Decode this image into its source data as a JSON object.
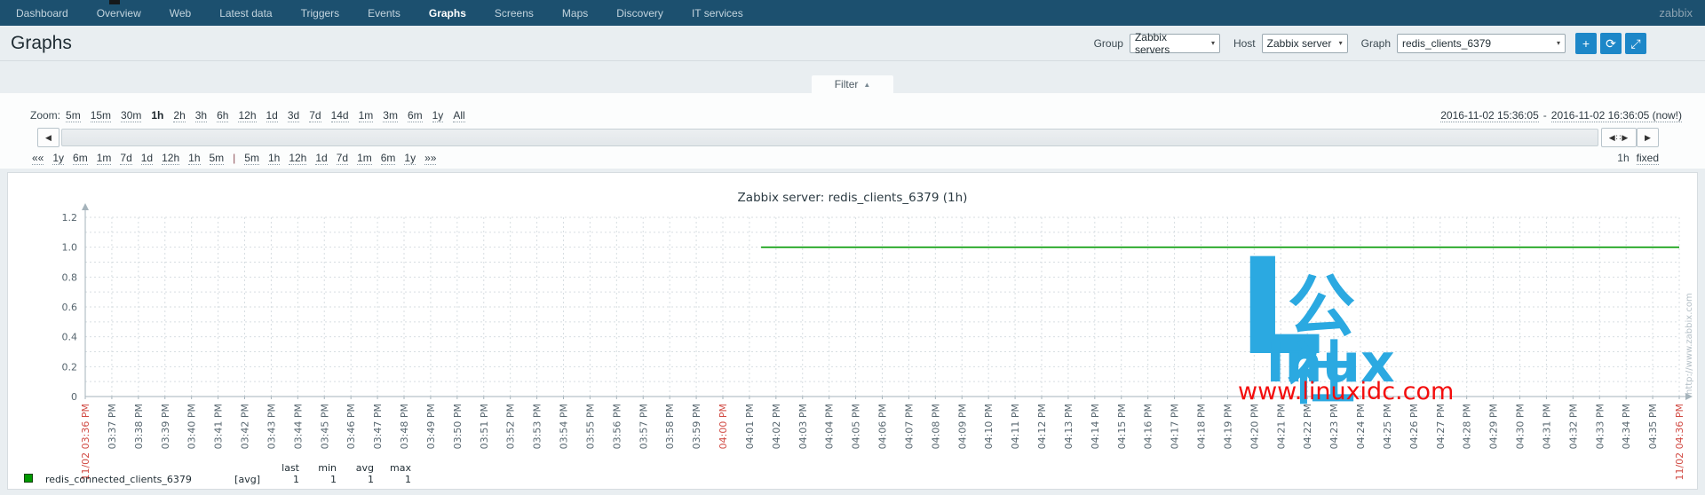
{
  "nav": {
    "brand": "zabbix",
    "items": [
      {
        "label": "Dashboard",
        "active": false
      },
      {
        "label": "Overview",
        "active": false
      },
      {
        "label": "Web",
        "active": false
      },
      {
        "label": "Latest data",
        "active": false
      },
      {
        "label": "Triggers",
        "active": false
      },
      {
        "label": "Events",
        "active": false
      },
      {
        "label": "Graphs",
        "active": true
      },
      {
        "label": "Screens",
        "active": false
      },
      {
        "label": "Maps",
        "active": false
      },
      {
        "label": "Discovery",
        "active": false
      },
      {
        "label": "IT services",
        "active": false
      }
    ]
  },
  "header": {
    "title": "Graphs",
    "group_label": "Group",
    "group_value": "Zabbix servers",
    "host_label": "Host",
    "host_value": "Zabbix server",
    "graph_label": "Graph",
    "graph_value": "redis_clients_6379",
    "select_caret": "▾",
    "buttons": [
      {
        "name": "add",
        "glyph": "+"
      },
      {
        "name": "refresh",
        "glyph": "⟳"
      },
      {
        "name": "fullscreen",
        "glyph": "⤢"
      }
    ]
  },
  "filter": {
    "label": "Filter",
    "caret": "▲"
  },
  "timebar": {
    "zoom_label": "Zoom:",
    "zoom_links": [
      "5m",
      "15m",
      "30m",
      "1h",
      "2h",
      "3h",
      "6h",
      "12h",
      "1d",
      "3d",
      "7d",
      "14d",
      "1m",
      "3m",
      "6m",
      "1y",
      "All"
    ],
    "zoom_active": "1h",
    "range_start": "2016-11-02 15:36:05",
    "range_sep": "-",
    "range_end": "2016-11-02 16:36:05 (now!)",
    "scroll": {
      "left_arrow": "◀",
      "handle": "◀∷▶",
      "right_arrow": "▶"
    },
    "nav_left": [
      "««",
      "1y",
      "6m",
      "1m",
      "7d",
      "1d",
      "12h",
      "1h",
      "5m"
    ],
    "nav_sep": "|",
    "nav_right": [
      "5m",
      "1h",
      "12h",
      "1d",
      "7d",
      "1m",
      "6m",
      "1y",
      "»»"
    ],
    "period": "1h",
    "fixed_label": "fixed"
  },
  "chart_data": {
    "type": "line",
    "title": "Zabbix server: redis_clients_6379 (1h)",
    "ylim": [
      0,
      1.2
    ],
    "y_major_step": 0.2,
    "y_minor_step": 0.1,
    "grid": true,
    "y_tick_labels": [
      "0",
      "0.2",
      "0.4",
      "0.6",
      "0.8",
      "1.0",
      "1.2"
    ],
    "x_tick_labels": [
      "11/02 03:36 PM",
      "03:37 PM",
      "03:38 PM",
      "03:39 PM",
      "03:40 PM",
      "03:41 PM",
      "03:42 PM",
      "03:43 PM",
      "03:44 PM",
      "03:45 PM",
      "03:46 PM",
      "03:47 PM",
      "03:48 PM",
      "03:49 PM",
      "03:50 PM",
      "03:51 PM",
      "03:52 PM",
      "03:53 PM",
      "03:54 PM",
      "03:55 PM",
      "03:56 PM",
      "03:57 PM",
      "03:58 PM",
      "03:59 PM",
      "04:00 PM",
      "04:01 PM",
      "04:02 PM",
      "04:03 PM",
      "04:04 PM",
      "04:05 PM",
      "04:06 PM",
      "04:07 PM",
      "04:08 PM",
      "04:09 PM",
      "04:10 PM",
      "04:11 PM",
      "04:12 PM",
      "04:13 PM",
      "04:14 PM",
      "04:15 PM",
      "04:16 PM",
      "04:17 PM",
      "04:18 PM",
      "04:19 PM",
      "04:20 PM",
      "04:21 PM",
      "04:22 PM",
      "04:23 PM",
      "04:24 PM",
      "04:25 PM",
      "04:26 PM",
      "04:27 PM",
      "04:28 PM",
      "04:29 PM",
      "04:30 PM",
      "04:31 PM",
      "04:32 PM",
      "04:33 PM",
      "04:34 PM",
      "04:35 PM",
      "11/02 04:36 PM"
    ],
    "x_red_indices": [
      0,
      24,
      60
    ],
    "series": [
      {
        "name": "redis_connected_clients_6379",
        "color": "#009900",
        "value": 1,
        "x_start_frac": 0.424,
        "x_end_frac": 1.0
      }
    ],
    "legend": {
      "fn": "[avg]",
      "stats_headers": [
        "last",
        "min",
        "avg",
        "max"
      ],
      "stats_values": [
        "1",
        "1",
        "1",
        "1"
      ]
    },
    "watermark": "http://www.zabbix.com"
  },
  "site_watermark": {
    "logo_l": "L",
    "logo_cn": "公社",
    "logo_rest": "inux",
    "url": "www.linuxidc.com"
  }
}
